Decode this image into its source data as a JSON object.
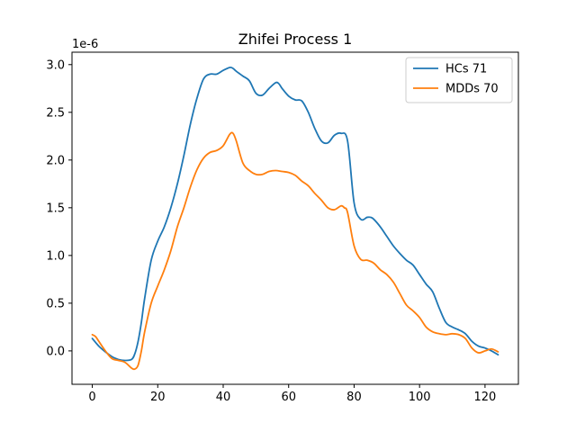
{
  "chart_data": {
    "type": "line",
    "title": "Zhifei Process 1",
    "xlabel": "",
    "ylabel": "",
    "y_offset_text": "1e-6",
    "xlim": [
      -6.2,
      130.2
    ],
    "ylim": [
      -0.35,
      3.13
    ],
    "xticks": [
      0,
      20,
      40,
      60,
      80,
      100,
      120
    ],
    "xtick_labels": [
      "0",
      "20",
      "40",
      "60",
      "80",
      "100",
      "120"
    ],
    "yticks": [
      0.0,
      0.5,
      1.0,
      1.5,
      2.0,
      2.5,
      3.0
    ],
    "ytick_labels": [
      "0.0",
      "0.5",
      "1.0",
      "1.5",
      "2.0",
      "2.5",
      "3.0"
    ],
    "grid": false,
    "legend_position": "top-right",
    "series": [
      {
        "name": "HCs 71",
        "color": "#1f77b4",
        "x": [
          0,
          2,
          4,
          6,
          8,
          10,
          12,
          13,
          14,
          15,
          16,
          18,
          20,
          22,
          24,
          26,
          28,
          30,
          32,
          34,
          36,
          38,
          40,
          42,
          43,
          44,
          46,
          48,
          50,
          52,
          54,
          56,
          57,
          58,
          60,
          62,
          64,
          66,
          68,
          70,
          72,
          74,
          76,
          78,
          80,
          82,
          84,
          85,
          86,
          88,
          90,
          92,
          94,
          96,
          98,
          100,
          102,
          104,
          106,
          108,
          110,
          112,
          114,
          116,
          118,
          120,
          122,
          124
        ],
        "y": [
          0.13,
          0.05,
          -0.01,
          -0.06,
          -0.09,
          -0.1,
          -0.09,
          -0.03,
          0.1,
          0.3,
          0.55,
          0.95,
          1.15,
          1.3,
          1.5,
          1.75,
          2.05,
          2.38,
          2.65,
          2.85,
          2.9,
          2.9,
          2.94,
          2.97,
          2.96,
          2.93,
          2.88,
          2.83,
          2.7,
          2.68,
          2.75,
          2.81,
          2.8,
          2.75,
          2.67,
          2.63,
          2.62,
          2.5,
          2.33,
          2.2,
          2.18,
          2.26,
          2.28,
          2.2,
          1.55,
          1.38,
          1.4,
          1.4,
          1.38,
          1.3,
          1.2,
          1.1,
          1.02,
          0.95,
          0.9,
          0.8,
          0.7,
          0.62,
          0.45,
          0.3,
          0.25,
          0.22,
          0.18,
          0.1,
          0.05,
          0.03,
          0.0,
          -0.04
        ]
      },
      {
        "name": "MDDs 70",
        "color": "#ff7f0e",
        "x": [
          0,
          1,
          2,
          4,
          6,
          8,
          10,
          12,
          13,
          14,
          15,
          16,
          18,
          20,
          22,
          24,
          26,
          28,
          30,
          32,
          34,
          36,
          38,
          40,
          42,
          43,
          44,
          46,
          48,
          50,
          52,
          54,
          56,
          58,
          60,
          62,
          64,
          66,
          68,
          70,
          72,
          74,
          76,
          77,
          78,
          80,
          82,
          84,
          86,
          88,
          90,
          92,
          94,
          96,
          98,
          100,
          102,
          104,
          106,
          108,
          110,
          112,
          114,
          116,
          118,
          120,
          122,
          124
        ],
        "y": [
          0.17,
          0.15,
          0.1,
          0.0,
          -0.08,
          -0.1,
          -0.12,
          -0.18,
          -0.19,
          -0.15,
          0.0,
          0.2,
          0.5,
          0.68,
          0.85,
          1.05,
          1.3,
          1.5,
          1.72,
          1.9,
          2.02,
          2.08,
          2.1,
          2.15,
          2.27,
          2.28,
          2.2,
          1.97,
          1.89,
          1.85,
          1.85,
          1.88,
          1.89,
          1.88,
          1.87,
          1.84,
          1.78,
          1.73,
          1.65,
          1.58,
          1.5,
          1.48,
          1.52,
          1.5,
          1.45,
          1.1,
          0.96,
          0.95,
          0.92,
          0.85,
          0.8,
          0.72,
          0.6,
          0.48,
          0.42,
          0.35,
          0.25,
          0.2,
          0.18,
          0.17,
          0.18,
          0.17,
          0.13,
          0.03,
          -0.02,
          0.0,
          0.02,
          -0.01
        ]
      }
    ]
  }
}
